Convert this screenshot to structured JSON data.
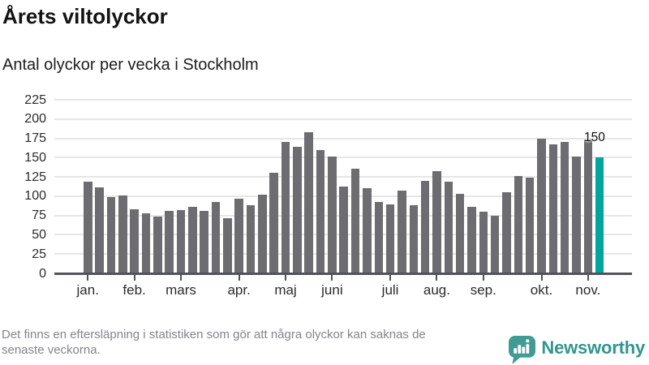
{
  "header": {
    "title": "Årets viltolyckor",
    "subtitle": "Antal olyckor per vecka i Stockholm"
  },
  "chart_data": {
    "type": "bar",
    "title": "Årets viltolyckor",
    "subtitle": "Antal olyckor per vecka i Stockholm",
    "ylabel": "",
    "xlabel": "",
    "ylim": [
      0,
      225
    ],
    "yticks": [
      0,
      25,
      50,
      75,
      100,
      125,
      150,
      175,
      200,
      225
    ],
    "grid": "horizontal",
    "legend": "none",
    "values": [
      119,
      111,
      99,
      101,
      83,
      78,
      74,
      81,
      82,
      86,
      81,
      93,
      71,
      97,
      88,
      102,
      130,
      170,
      164,
      183,
      160,
      151,
      113,
      136,
      110,
      93,
      89,
      107,
      88,
      120,
      132,
      119,
      103,
      86,
      80,
      75,
      105,
      126,
      124,
      175,
      167,
      170,
      151,
      174,
      150
    ],
    "month_ticks": [
      {
        "label": "jan.",
        "bar_index": 0
      },
      {
        "label": "feb.",
        "bar_index": 4
      },
      {
        "label": "mars",
        "bar_index": 8
      },
      {
        "label": "apr.",
        "bar_index": 13
      },
      {
        "label": "maj",
        "bar_index": 17
      },
      {
        "label": "juni",
        "bar_index": 21
      },
      {
        "label": "juli",
        "bar_index": 26
      },
      {
        "label": "aug.",
        "bar_index": 30
      },
      {
        "label": "sep.",
        "bar_index": 34
      },
      {
        "label": "okt.",
        "bar_index": 39
      },
      {
        "label": "nov.",
        "bar_index": 43
      }
    ],
    "bar_color": "#6c6c71",
    "highlight": {
      "bar_index": 44,
      "value": 150,
      "label": "150",
      "color": "#00a59d"
    }
  },
  "footer": {
    "note_lines": [
      "Det finns en eftersläpning i statistiken som gör att några olyckor kan saknas de",
      "senaste veckorna."
    ],
    "brand": {
      "name": "Newsworthy",
      "icon": "newsworthy-logo-icon",
      "wordmark_color": "#33968e",
      "icon_color": "#3f9b93"
    }
  }
}
